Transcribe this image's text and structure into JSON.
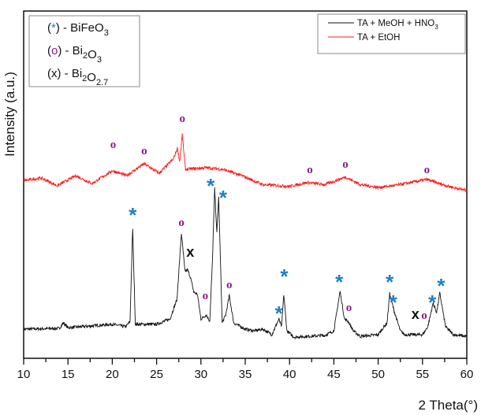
{
  "chart_data": {
    "type": "line",
    "xlabel": "2 Theta(°)",
    "ylabel": "Intensity (a.u.)",
    "xlim": [
      10,
      60
    ],
    "ylim": [
      0,
      100
    ],
    "xticks": [
      10,
      15,
      20,
      25,
      30,
      35,
      40,
      45,
      50,
      55,
      60
    ],
    "grid": false,
    "series_legend_position": "top-right",
    "phase_legend_position": "top-left",
    "series": [
      {
        "name": "TA + MeOH + HNO",
        "name_sub": "3",
        "color": "#111111",
        "x": [
          10,
          14,
          14.5,
          15,
          20,
          21.5,
          22.0,
          22.3,
          22.6,
          25,
          26.5,
          27.3,
          27.8,
          28.2,
          28.5,
          28.8,
          29.2,
          29.6,
          30.0,
          30.6,
          31.0,
          31.3,
          31.55,
          31.8,
          32.0,
          32.4,
          32.8,
          33.2,
          33.7,
          35,
          36,
          37,
          38,
          38.8,
          39.1,
          39.35,
          39.7,
          40.5,
          44,
          45.0,
          45.7,
          46.2,
          46.6,
          47.2,
          48,
          50,
          51.0,
          51.3,
          51.8,
          52.5,
          53,
          55,
          55.6,
          56.2,
          56.6,
          56.95,
          57.6,
          58.5,
          60
        ],
        "y": [
          8.4,
          8.6,
          10.2,
          8.8,
          9.8,
          9.1,
          10.5,
          37.4,
          9.8,
          9.8,
          11.3,
          17.0,
          36.0,
          25.0,
          25.5,
          23.5,
          19.0,
          18.5,
          11.3,
          12.5,
          10.7,
          28.0,
          48.8,
          36.0,
          46.5,
          10.2,
          12.5,
          18.1,
          10.2,
          8.4,
          7.9,
          8.4,
          6.8,
          11.3,
          9.1,
          18.4,
          7.9,
          6.1,
          6.6,
          7.9,
          19.3,
          11.3,
          10.7,
          7.9,
          6.3,
          6.8,
          10.2,
          18.6,
          13.6,
          7.9,
          6.8,
          6.8,
          9.1,
          15.9,
          13.2,
          18.8,
          9.1,
          6.8,
          6.3
        ]
      },
      {
        "name": "TA + EtOH",
        "name_sub": "",
        "color": "#ff1a1a",
        "x": [
          10,
          12,
          13.8,
          15.9,
          17.7,
          20,
          21.6,
          23.6,
          25.3,
          26.9,
          27.35,
          27.6,
          27.9,
          28.25,
          30.5,
          32.5,
          34.6,
          37,
          40,
          42,
          44,
          46.3,
          48,
          50,
          52,
          55.5,
          57,
          58.5,
          60
        ],
        "y": [
          51.2,
          51.9,
          49.7,
          52.6,
          50.3,
          54.0,
          52.6,
          56.0,
          53.3,
          57.4,
          60.5,
          56.7,
          64.4,
          54.4,
          54.9,
          54.4,
          52.6,
          50.0,
          49.5,
          50.6,
          50.0,
          52.2,
          50.0,
          49.2,
          49.8,
          51.5,
          50.2,
          49.2,
          48.3
        ]
      }
    ],
    "phase_legend": [
      {
        "symbol": "*",
        "symbol_color": "#1f7fc4",
        "parts": [
          [
            "BiFeO",
            ""
          ],
          [
            "3",
            "sub"
          ]
        ]
      },
      {
        "symbol": "o",
        "symbol_color": "#8b1a8b",
        "parts": [
          [
            "Bi",
            ""
          ],
          [
            "2",
            "sub"
          ],
          [
            "O",
            ""
          ],
          [
            "3",
            "sub"
          ]
        ]
      },
      {
        "symbol": "x",
        "symbol_color": "#111111",
        "parts": [
          [
            "Bi",
            ""
          ],
          [
            "2",
            "sub"
          ],
          [
            "O",
            ""
          ],
          [
            "2.7",
            "sub"
          ]
        ]
      }
    ],
    "annotations": [
      {
        "symbol": "o",
        "x": 20.1,
        "y": 60.5,
        "phase": "Bi2O3"
      },
      {
        "symbol": "o",
        "x": 23.6,
        "y": 58.7,
        "phase": "Bi2O3"
      },
      {
        "symbol": "o",
        "x": 27.9,
        "y": 68.0,
        "phase": "Bi2O3"
      },
      {
        "symbol": "o",
        "x": 42.3,
        "y": 53.3,
        "phase": "Bi2O3"
      },
      {
        "symbol": "o",
        "x": 46.3,
        "y": 54.9,
        "phase": "Bi2O3"
      },
      {
        "symbol": "o",
        "x": 55.5,
        "y": 53.3,
        "phase": "Bi2O3"
      },
      {
        "symbol": "*",
        "x": 22.3,
        "y": 41.5,
        "phase": "BiFeO3"
      },
      {
        "symbol": "*",
        "x": 31.1,
        "y": 49.9,
        "phase": "BiFeO3"
      },
      {
        "symbol": "*",
        "x": 32.5,
        "y": 46.5,
        "phase": "BiFeO3"
      },
      {
        "symbol": "*",
        "x": 38.8,
        "y": 13.2,
        "phase": "BiFeO3"
      },
      {
        "symbol": "*",
        "x": 39.4,
        "y": 23.8,
        "phase": "BiFeO3"
      },
      {
        "symbol": "*",
        "x": 45.6,
        "y": 22.2,
        "phase": "BiFeO3"
      },
      {
        "symbol": "*",
        "x": 51.3,
        "y": 22.2,
        "phase": "BiFeO3"
      },
      {
        "symbol": "*",
        "x": 51.7,
        "y": 16.3,
        "phase": "BiFeO3"
      },
      {
        "symbol": "*",
        "x": 56.1,
        "y": 16.3,
        "phase": "BiFeO3"
      },
      {
        "symbol": "*",
        "x": 57.1,
        "y": 21.1,
        "phase": "BiFeO3"
      },
      {
        "symbol": "o",
        "x": 27.8,
        "y": 38.1,
        "phase": "Bi2O3"
      },
      {
        "symbol": "o",
        "x": 30.5,
        "y": 17.0,
        "phase": "Bi2O3"
      },
      {
        "symbol": "o",
        "x": 33.2,
        "y": 20.2,
        "phase": "Bi2O3"
      },
      {
        "symbol": "o",
        "x": 46.7,
        "y": 13.6,
        "phase": "Bi2O3"
      },
      {
        "symbol": "o",
        "x": 55.2,
        "y": 11.3,
        "phase": "Bi2O3"
      },
      {
        "symbol": "x",
        "x": 28.8,
        "y": 29.3,
        "phase": "Bi2O2.7"
      },
      {
        "symbol": "x",
        "x": 54.2,
        "y": 11.3,
        "phase": "Bi2O2.7"
      }
    ],
    "colors": {
      "BiFeO3": "#1f7fc4",
      "Bi2O3": "#8b1a8b",
      "Bi2O2.7": "#111111"
    }
  }
}
